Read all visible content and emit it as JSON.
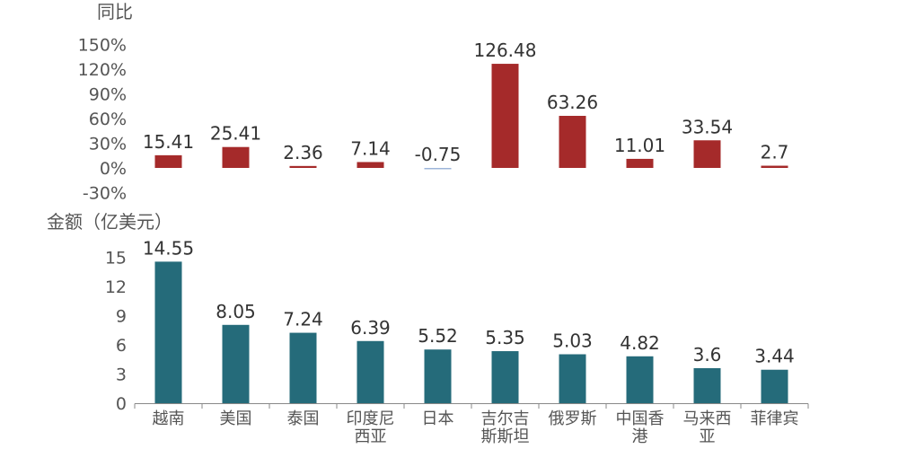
{
  "chart_data": [
    {
      "type": "bar",
      "ylabel": "同比",
      "yticks": [
        "150%",
        "120%",
        "90%",
        "60%",
        "30%",
        "0%",
        "-30%"
      ],
      "ylim": [
        -30,
        150
      ],
      "color": "#a52a2a",
      "negative_color": "#9db5d9",
      "categories": [
        "越南",
        "美国",
        "泰国",
        "印度尼西亚",
        "日本",
        "吉尔吉斯斯坦",
        "俄罗斯",
        "中国香港",
        "马来西亚",
        "菲律宾"
      ],
      "values": [
        15.41,
        25.41,
        2.36,
        7.14,
        -0.75,
        126.48,
        63.26,
        11.01,
        33.54,
        2.7
      ],
      "value_labels": [
        "15.41",
        "25.41",
        "2.36",
        "7.14",
        "-0.75",
        "126.48",
        "63.26",
        "11.01",
        "33.54",
        "2.7"
      ]
    },
    {
      "type": "bar",
      "ylabel": "金额（亿美元）",
      "yticks": [
        "15",
        "12",
        "9",
        "6",
        "3",
        "0"
      ],
      "ylim": [
        0,
        15
      ],
      "color": "#256b7a",
      "categories": [
        "越南",
        "美国",
        "泰国",
        "印度尼西亚",
        "日本",
        "吉尔吉斯斯坦",
        "俄罗斯",
        "中国香港",
        "马来西亚",
        "菲律宾"
      ],
      "category_lines": [
        [
          "越南"
        ],
        [
          "美国"
        ],
        [
          "泰国"
        ],
        [
          "印度尼",
          "西亚"
        ],
        [
          "日本"
        ],
        [
          "吉尔吉",
          "斯斯坦"
        ],
        [
          "俄罗斯"
        ],
        [
          "中国香",
          "港"
        ],
        [
          "马来西",
          "亚"
        ],
        [
          "菲律宾"
        ]
      ],
      "values": [
        14.55,
        8.05,
        7.24,
        6.39,
        5.52,
        5.35,
        5.03,
        4.82,
        3.6,
        3.44
      ],
      "value_labels": [
        "14.55",
        "8.05",
        "7.24",
        "6.39",
        "5.52",
        "5.35",
        "5.03",
        "4.82",
        "3.6",
        "3.44"
      ]
    }
  ]
}
